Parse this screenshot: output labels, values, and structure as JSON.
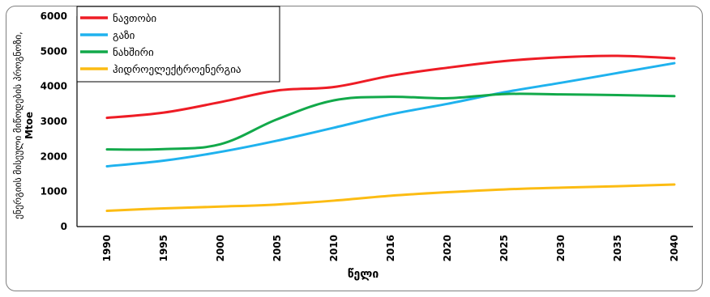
{
  "chart_data": {
    "type": "line",
    "x": [
      "1990",
      "1995",
      "2000",
      "2005",
      "2010",
      "2016",
      "2020",
      "2025",
      "2030",
      "2035",
      "2040"
    ],
    "ylabel": "ენერგიის მისეული მიწოდების პროგნოზი, Mtoe",
    "ylabel_line1": "ენერგიის მისეული მიწოდების პროგნოზი,",
    "ylabel_line2": "Mtoe",
    "xlabel": "წელი",
    "ylim": [
      0,
      6000
    ],
    "yticks": [
      0,
      1000,
      2000,
      3000,
      4000,
      5000,
      6000
    ],
    "grid": false,
    "legend": "top-left",
    "series": [
      {
        "name": "ნავთობი",
        "color": "#ee1c25",
        "values": [
          3100,
          3250,
          3550,
          3880,
          3980,
          4300,
          4530,
          4720,
          4830,
          4870,
          4800
        ]
      },
      {
        "name": "გაზი",
        "color": "#1fb2ee",
        "values": [
          1720,
          1880,
          2130,
          2450,
          2820,
          3200,
          3500,
          3830,
          4100,
          4380,
          4660
        ]
      },
      {
        "name": "ნახშირი",
        "color": "#12a94a",
        "values": [
          2200,
          2210,
          2350,
          3060,
          3600,
          3700,
          3660,
          3780,
          3770,
          3750,
          3720
        ]
      },
      {
        "name": "ჰიდროელექტროენერგია",
        "color": "#fcbc13",
        "values": [
          450,
          520,
          570,
          630,
          740,
          880,
          980,
          1060,
          1110,
          1150,
          1200
        ]
      }
    ]
  }
}
